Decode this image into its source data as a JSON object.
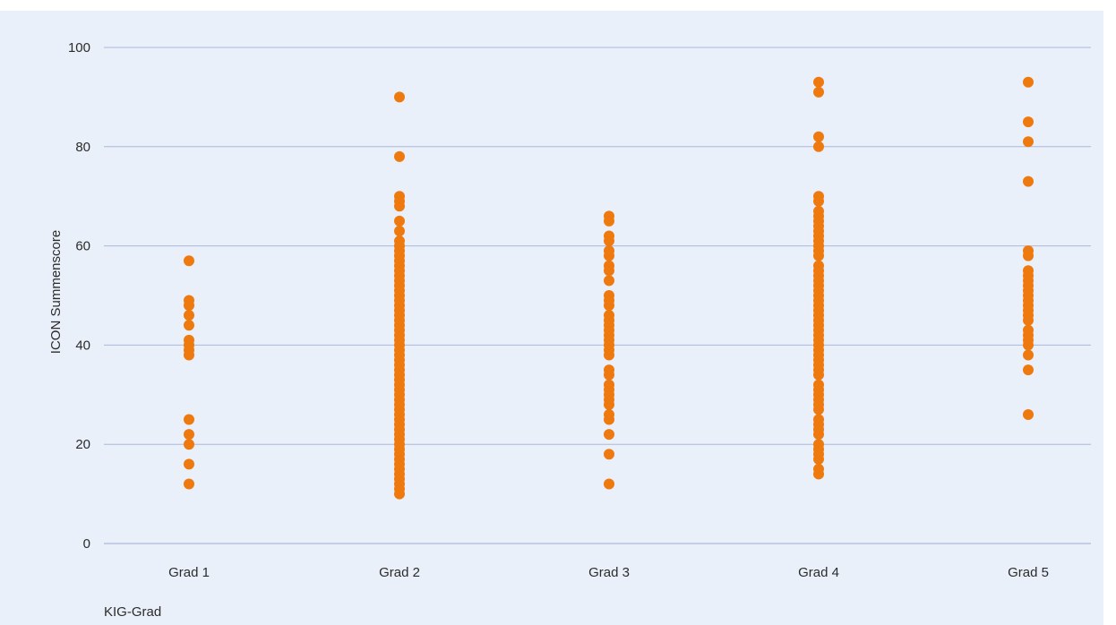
{
  "chart_data": {
    "type": "scatter",
    "title": "",
    "xlabel": "KIG-Grad",
    "ylabel": "ICON Summenscore",
    "categories": [
      "Grad 1",
      "Grad 2",
      "Grad 3",
      "Grad 4",
      "Grad 5"
    ],
    "ylim": [
      0,
      100
    ],
    "yticks": [
      0,
      20,
      40,
      60,
      80,
      100
    ],
    "grid": true,
    "legend": "none",
    "marker_color": "#ee7a0f",
    "background_color": "#eaf0f9",
    "grid_color": "#aab8dc",
    "series": [
      {
        "category": "Grad 1",
        "values": [
          57,
          49,
          48,
          46,
          44,
          41,
          40,
          39,
          38,
          25,
          22,
          20,
          16,
          12
        ]
      },
      {
        "category": "Grad 2",
        "values": [
          90,
          78,
          70,
          69,
          68,
          65,
          63,
          61,
          60,
          59,
          58,
          57,
          56,
          55,
          54,
          53,
          52,
          51,
          50,
          49,
          48,
          47,
          46,
          45,
          44,
          43,
          42,
          41,
          40,
          39,
          38,
          37,
          36,
          35,
          34,
          33,
          32,
          31,
          30,
          29,
          28,
          27,
          26,
          25,
          24,
          23,
          22,
          21,
          20,
          19,
          18,
          17,
          16,
          15,
          14,
          13,
          12,
          11,
          10
        ]
      },
      {
        "category": "Grad 3",
        "values": [
          66,
          65,
          62,
          61,
          59,
          58,
          56,
          55,
          53,
          50,
          49,
          48,
          46,
          45,
          44,
          43,
          42,
          41,
          40,
          39,
          38,
          35,
          34,
          32,
          31,
          30,
          29,
          28,
          26,
          25,
          22,
          18,
          12
        ]
      },
      {
        "category": "Grad 4",
        "values": [
          93,
          91,
          82,
          80,
          70,
          69,
          67,
          66,
          65,
          64,
          63,
          62,
          61,
          60,
          59,
          58,
          56,
          55,
          54,
          53,
          52,
          51,
          50,
          49,
          48,
          47,
          46,
          45,
          44,
          43,
          42,
          41,
          40,
          39,
          38,
          37,
          36,
          35,
          34,
          32,
          31,
          30,
          29,
          28,
          27,
          25,
          24,
          23,
          22,
          20,
          19,
          18,
          17,
          15,
          14
        ]
      },
      {
        "category": "Grad 5",
        "values": [
          93,
          85,
          81,
          73,
          59,
          58,
          55,
          54,
          53,
          52,
          51,
          50,
          49,
          48,
          47,
          46,
          45,
          43,
          42,
          41,
          40,
          38,
          35,
          26
        ]
      }
    ]
  }
}
